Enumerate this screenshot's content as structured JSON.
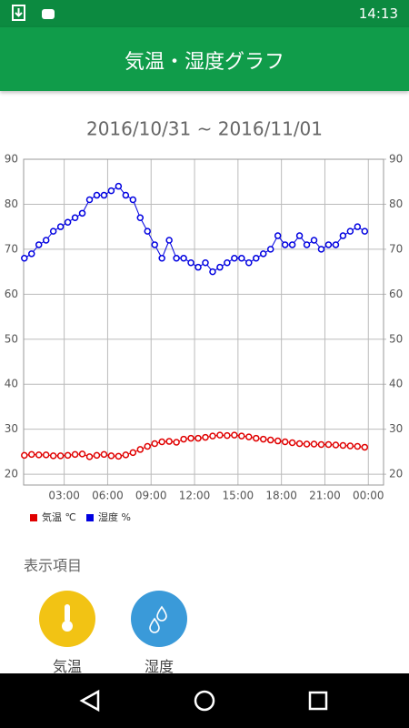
{
  "status_bar": {
    "time": "14:13"
  },
  "app_bar": {
    "title": "気温・湿度グラフ"
  },
  "chart_data": {
    "type": "line",
    "title": "2016/10/31 ~ 2016/11/01",
    "x": [
      0.25,
      0.75,
      1.25,
      1.75,
      2.25,
      2.75,
      3.25,
      3.75,
      4.25,
      4.75,
      5.25,
      5.75,
      6.25,
      6.75,
      7.25,
      7.75,
      8.25,
      8.75,
      9.25,
      9.75,
      10.25,
      10.75,
      11.25,
      11.75,
      12.25,
      12.75,
      13.25,
      13.75,
      14.25,
      14.75,
      15.25,
      15.75,
      16.25,
      16.75,
      17.25,
      17.75,
      18.25,
      18.75,
      19.25,
      19.75,
      20.25,
      20.75,
      21.25,
      21.75,
      22.25,
      22.75,
      23.25,
      23.75
    ],
    "series": [
      {
        "name": "気温 ℃",
        "color": "#e00000",
        "values": [
          24.2,
          24.4,
          24.3,
          24.3,
          24.1,
          24.1,
          24.2,
          24.4,
          24.5,
          23.9,
          24.2,
          24.4,
          24.1,
          24.0,
          24.3,
          24.8,
          25.5,
          26.2,
          26.8,
          27.2,
          27.3,
          27.1,
          27.8,
          28.0,
          28.0,
          28.2,
          28.5,
          28.7,
          28.6,
          28.7,
          28.5,
          28.3,
          28.0,
          27.8,
          27.6,
          27.4,
          27.2,
          27.0,
          26.8,
          26.7,
          26.7,
          26.6,
          26.6,
          26.5,
          26.4,
          26.3,
          26.2,
          26.0
        ]
      },
      {
        "name": "湿度 %",
        "color": "#0000e0",
        "values": [
          68,
          69,
          71,
          72,
          74,
          75,
          76,
          77,
          78,
          81,
          82,
          82,
          83,
          84,
          82,
          81,
          77,
          74,
          71,
          68,
          72,
          68,
          68,
          67,
          66,
          67,
          65,
          66,
          67,
          68,
          68,
          67,
          68,
          69,
          70,
          73,
          71,
          71,
          73,
          71,
          72,
          70,
          71,
          71,
          73,
          74,
          75,
          74
        ]
      }
    ],
    "xlim": [
      0.2,
      25.05
    ],
    "xticks": [
      {
        "value": 3,
        "label": "03:00"
      },
      {
        "value": 6,
        "label": "06:00"
      },
      {
        "value": 9,
        "label": "09:00"
      },
      {
        "value": 12,
        "label": "12:00"
      },
      {
        "value": 15,
        "label": "15:00"
      },
      {
        "value": 18,
        "label": "18:00"
      },
      {
        "value": 21,
        "label": "21:00"
      },
      {
        "value": 24,
        "label": "00:00"
      }
    ],
    "ylim": [
      17.6,
      90
    ],
    "yticks": [
      20,
      30,
      40,
      50,
      60,
      70,
      80,
      90
    ],
    "y2lim": [
      17.6,
      90
    ],
    "y2ticks": [
      20,
      30,
      40,
      50,
      60,
      70,
      80,
      90
    ],
    "grid": true,
    "legend": "bottom-left"
  },
  "section": {
    "title": "表示項目",
    "buttons": [
      "気温",
      "湿度"
    ]
  }
}
